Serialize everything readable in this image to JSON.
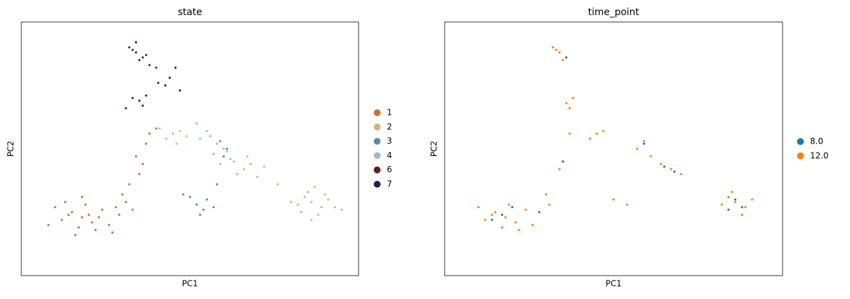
{
  "chart_data": [
    {
      "type": "scatter",
      "title": "state",
      "x_label": "PC1",
      "y_label": "PC2",
      "xlim": [
        0,
        100
      ],
      "ylim": [
        0,
        100
      ],
      "series": [
        {
          "name": "1",
          "color": "#cc7230",
          "x": [
            18,
            15,
            21,
            12,
            24,
            17,
            19,
            14,
            22,
            10,
            26,
            18,
            16,
            20,
            13,
            23,
            28,
            31,
            33,
            35,
            30,
            36,
            34,
            38,
            37,
            32,
            29,
            40,
            27,
            8
          ],
          "y": [
            23,
            25,
            21,
            22,
            26,
            19,
            28,
            24,
            18,
            27,
            20,
            31,
            16,
            24,
            29,
            23,
            27,
            29,
            26,
            40,
            32,
            44,
            47,
            56,
            52,
            36,
            24,
            58,
            17,
            20
          ]
        },
        {
          "name": "2",
          "color": "#d2b48c",
          "x": [
            86,
            84,
            89,
            82,
            88,
            91,
            85,
            80,
            87,
            93,
            83,
            86,
            90,
            66,
            68,
            64,
            70,
            63,
            67,
            72,
            45,
            43,
            47,
            41,
            49,
            46,
            76,
            95,
            61,
            52
          ],
          "y": [
            29,
            31,
            27,
            28,
            24,
            30,
            33,
            29,
            35,
            27,
            25,
            22,
            32,
            42,
            44,
            40,
            39,
            45,
            47,
            43,
            56,
            54,
            57,
            58,
            55,
            52,
            36,
            26,
            49,
            60
          ]
        },
        {
          "name": "3",
          "color": "#5b89ad",
          "x": [
            52,
            55,
            54,
            50,
            57,
            53,
            59,
            61,
            56,
            58,
            48,
            60
          ],
          "y": [
            28,
            30,
            26,
            31,
            27,
            24,
            53,
            50,
            55,
            36,
            32,
            47
          ]
        },
        {
          "name": "4",
          "color": "#a7b8cd",
          "x": [
            58,
            56,
            60,
            57,
            62,
            55,
            59,
            53
          ],
          "y": [
            52,
            55,
            50,
            48,
            46,
            57,
            44,
            54
          ]
        },
        {
          "name": "6",
          "color": "#5c211c",
          "x": [
            34,
            36,
            33,
            35,
            32,
            37,
            34,
            38,
            35,
            36,
            37,
            31,
            40,
            33
          ],
          "y": [
            88,
            86,
            89,
            85,
            90,
            87,
            92,
            83,
            69,
            67,
            71,
            66,
            82,
            70
          ]
        },
        {
          "name": "7",
          "color": "#22214f",
          "x": [
            42.7,
            45.7,
            40.6,
            44,
            47
          ],
          "y": [
            75,
            82,
            76,
            78,
            73
          ]
        }
      ]
    },
    {
      "type": "scatter",
      "title": "time_point",
      "x_label": "PC1",
      "y_label": "PC2",
      "xlim": [
        0,
        100
      ],
      "ylim": [
        0,
        100
      ],
      "series": [
        {
          "name": "8.0",
          "color": "#1f77b4",
          "x": [
            17,
            20,
            14,
            86,
            88,
            84,
            65,
            68,
            36,
            59,
            35,
            28
          ],
          "y": [
            24,
            27,
            22,
            30,
            27,
            26,
            43,
            41,
            86,
            52,
            45,
            25
          ]
        },
        {
          "name": "12.0",
          "color": "#ff7f0e",
          "x": [
            18,
            15,
            21,
            12,
            24,
            17,
            19,
            14,
            22,
            10,
            26,
            30,
            34,
            35,
            37,
            31,
            86,
            84,
            89,
            82,
            88,
            91,
            85,
            67,
            64,
            70,
            45,
            43,
            47,
            54,
            50,
            59,
            57,
            61,
            34,
            36,
            33,
            35,
            32,
            36,
            38,
            37
          ],
          "y": [
            23,
            25,
            21,
            22,
            26,
            19,
            28,
            24,
            18,
            27,
            20,
            32,
            42,
            45,
            56,
            28,
            29,
            31,
            27,
            28,
            24,
            30,
            33,
            42,
            44,
            40,
            56,
            54,
            57,
            28,
            30,
            53,
            50,
            47,
            88,
            86,
            89,
            85,
            90,
            68,
            70,
            66
          ]
        }
      ]
    }
  ]
}
